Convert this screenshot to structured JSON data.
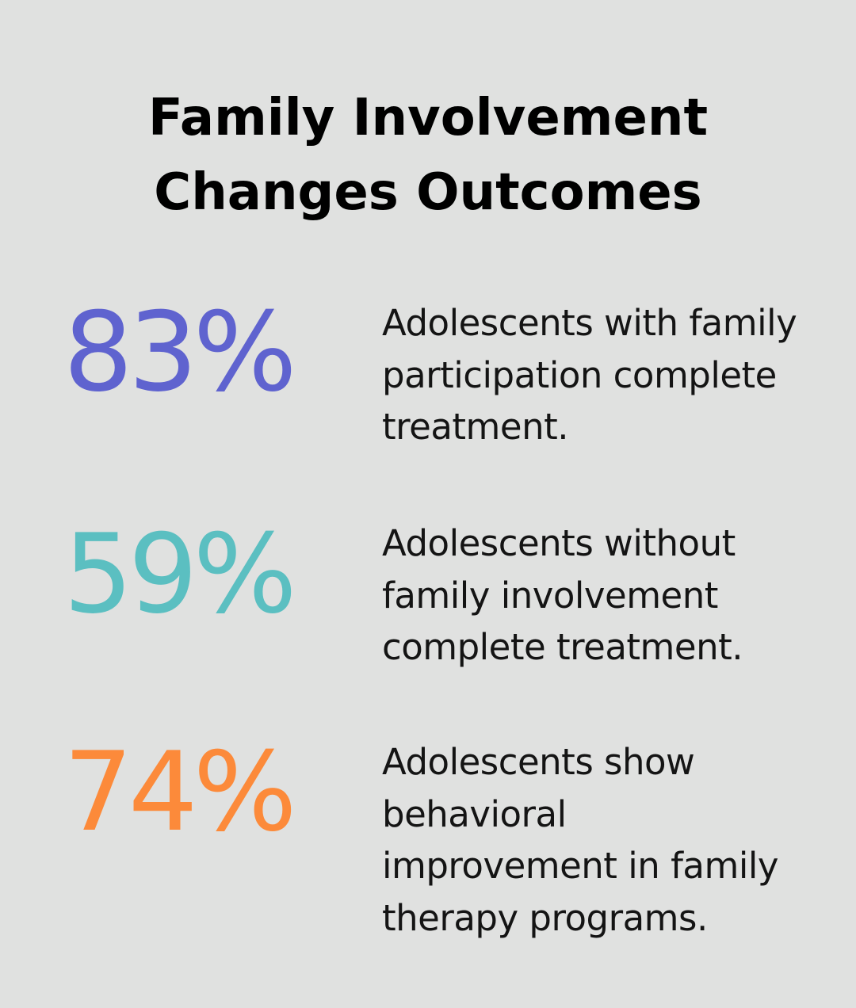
{
  "title": {
    "line1": "Family Involvement",
    "line2": "Changes Outcomes"
  },
  "stats": [
    {
      "value": "83%",
      "color": "#5f63cf",
      "lines": [
        "Adolescents with family",
        "participation complete",
        "treatment."
      ]
    },
    {
      "value": "59%",
      "color": "#5bbfc1",
      "lines": [
        "Adolescents without",
        "family involvement",
        "complete treatment."
      ]
    },
    {
      "value": "74%",
      "color": "#fc8a3a",
      "lines": [
        "Adolescents show",
        "behavioral",
        "improvement in family",
        "therapy programs."
      ]
    }
  ]
}
